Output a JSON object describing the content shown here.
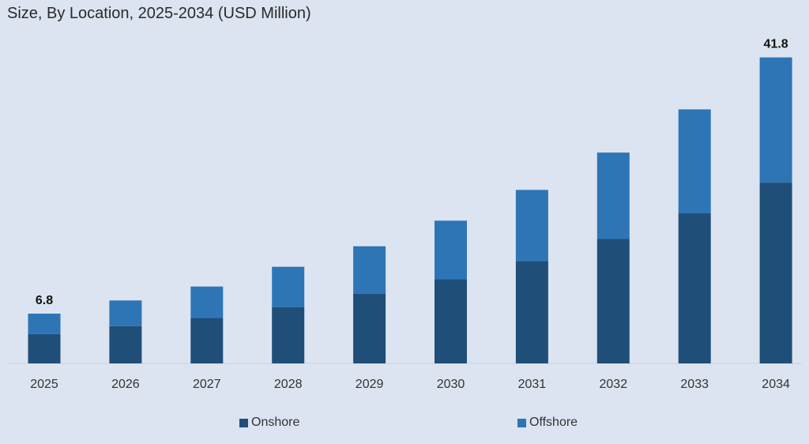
{
  "chart_data": {
    "type": "bar",
    "stacked": true,
    "title": "Size, By Location, 2025-2034 (USD Million)",
    "xlabel": "",
    "ylabel": "",
    "ylim": [
      0,
      45
    ],
    "grid": false,
    "legend_position": "bottom",
    "categories": [
      "2025",
      "2026",
      "2027",
      "2028",
      "2029",
      "2030",
      "2031",
      "2032",
      "2033",
      "2034"
    ],
    "series": [
      {
        "name": "Onshore",
        "color": "#1f4e79",
        "values": [
          4.0,
          5.1,
          6.2,
          7.7,
          9.5,
          11.5,
          14.0,
          17.0,
          20.5,
          24.7
        ]
      },
      {
        "name": "Offshore",
        "color": "#2e75b6",
        "values": [
          2.8,
          3.5,
          4.3,
          5.5,
          6.5,
          8.0,
          9.7,
          11.8,
          14.2,
          17.1
        ]
      }
    ],
    "data_labels": [
      {
        "category": "2025",
        "text": "6.8"
      },
      {
        "category": "2034",
        "text": "41.8"
      }
    ]
  }
}
